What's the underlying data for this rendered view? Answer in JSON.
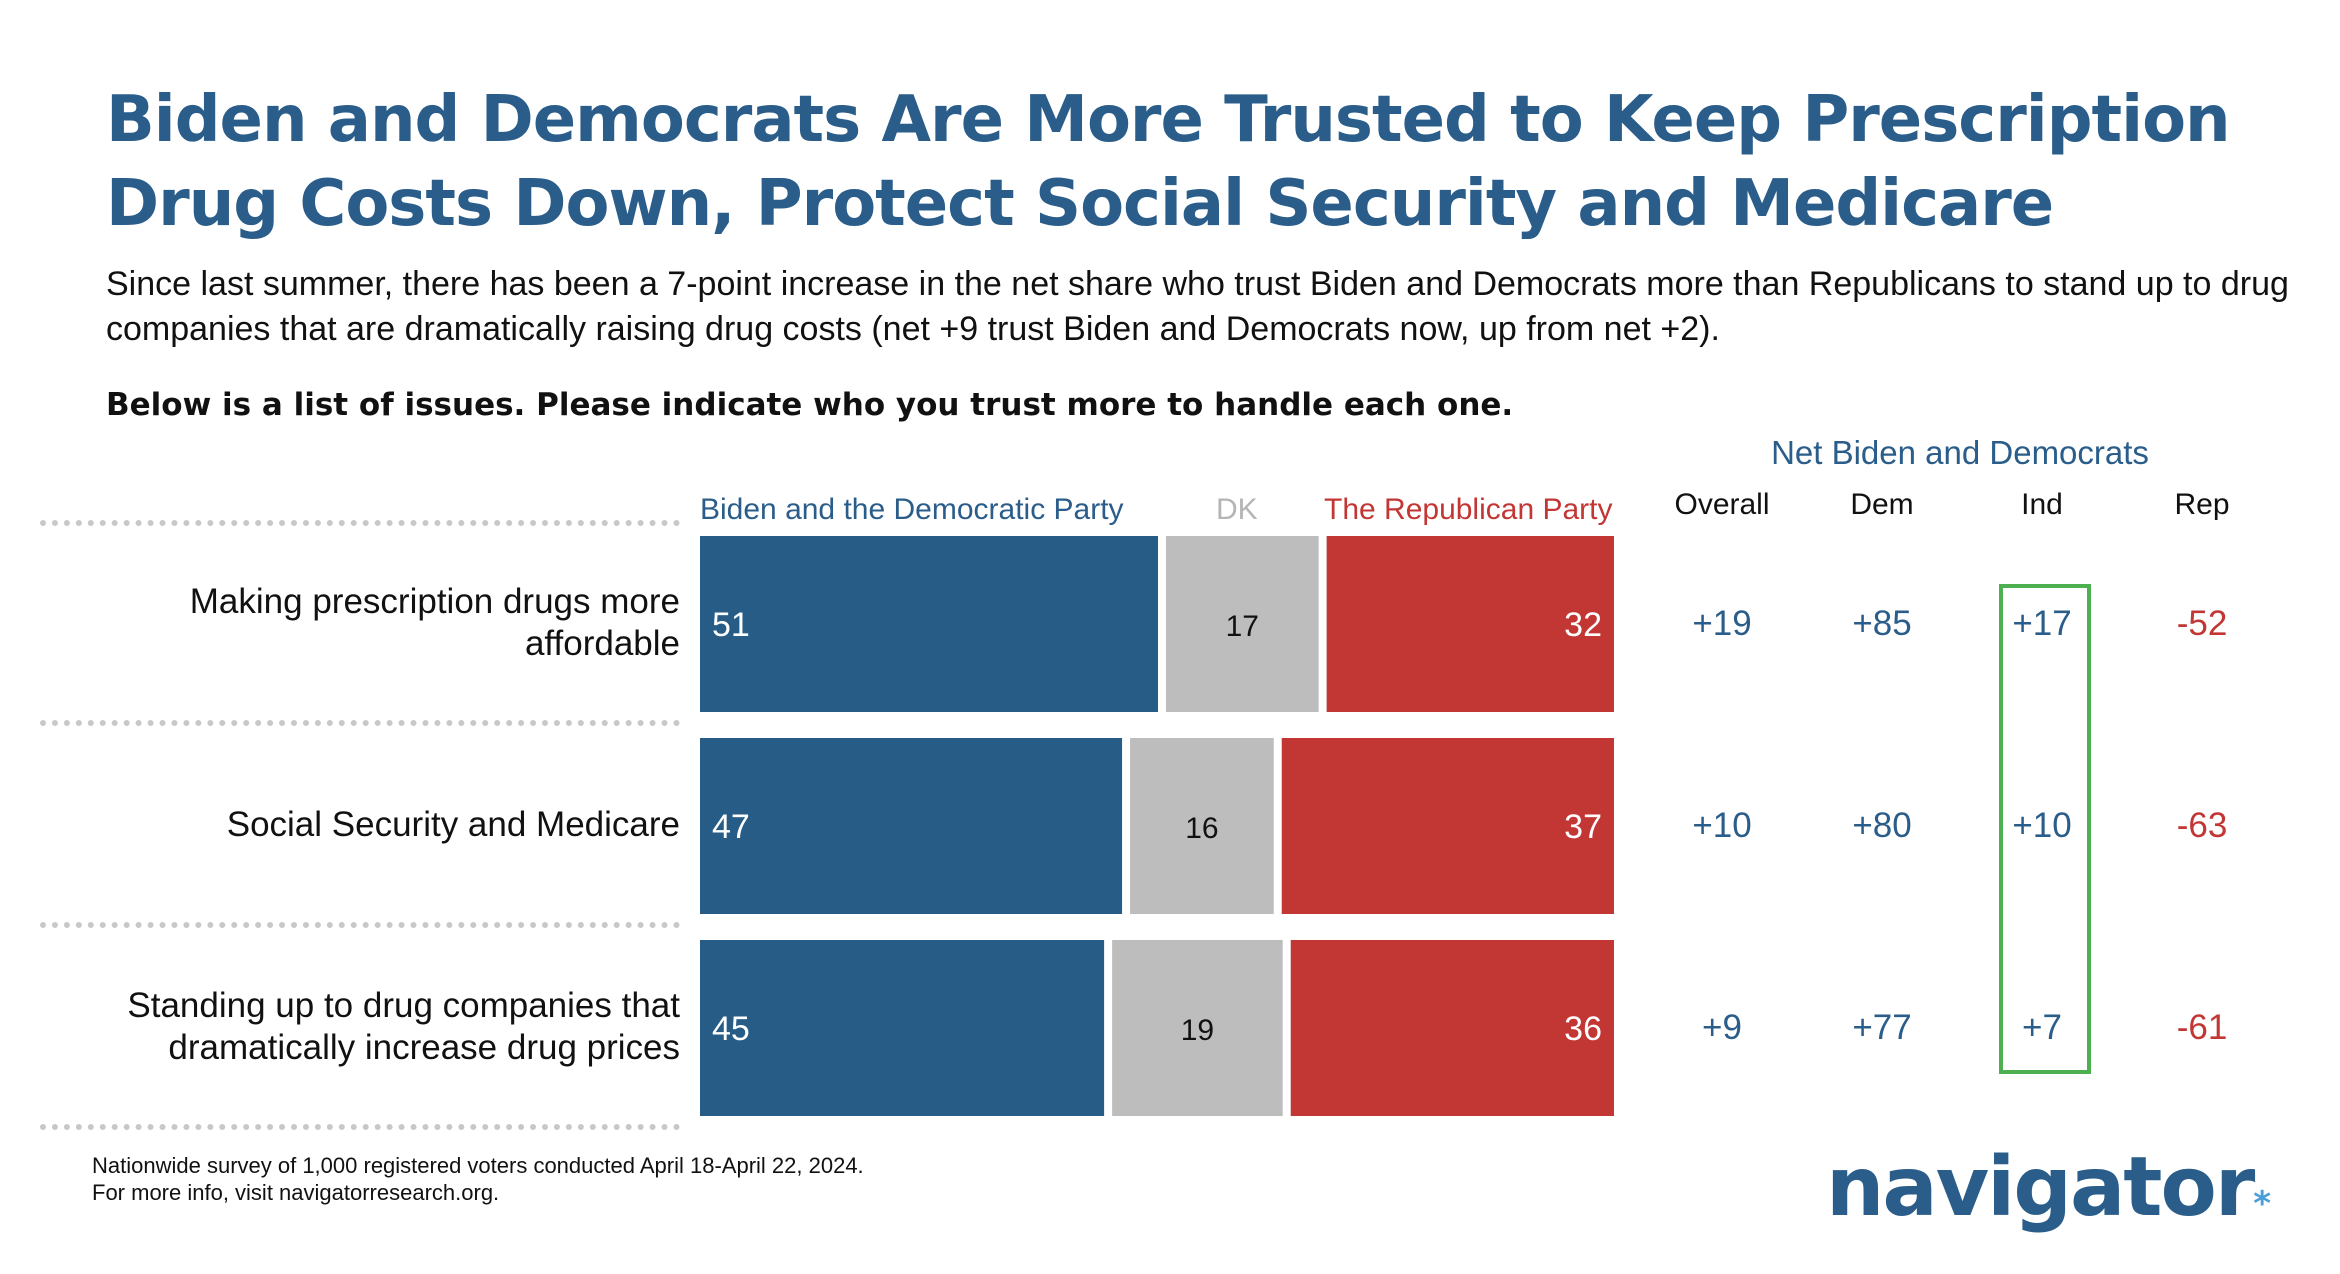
{
  "title": "Biden and Democrats Are More Trusted to Keep Prescription Drug Costs Down, Protect Social Security and Medicare",
  "subtitle": "Since last summer, there has been a 7-point increase in the net share who trust Biden and Democrats more than Republicans to stand up to drug companies that are dramatically raising drug costs (net +9 trust Biden and Democrats now, up from net +2).",
  "question": "Below is a list of issues. Please indicate who you trust more to handle each one.",
  "colors": {
    "dem": "#275c87",
    "dk": "#bdbdbd",
    "rep": "#c23634",
    "title": "#2a5d8a",
    "highlight": "#4caf50"
  },
  "net": {
    "header": "Net Biden and Democrats",
    "columns": [
      "Overall",
      "Dem",
      "Ind",
      "Rep"
    ],
    "rows": [
      [
        "+19",
        "+85",
        "+17",
        "-52"
      ],
      [
        "+10",
        "+80",
        "+10",
        "-63"
      ],
      [
        "+9",
        "+77",
        "+7",
        "-61"
      ]
    ]
  },
  "chart_data": {
    "type": "bar",
    "orientation": "horizontal",
    "stacked": true,
    "categories": [
      "Making prescription drugs more affordable",
      "Social Security and Medicare",
      "Standing up to drug companies that dramatically increase drug prices"
    ],
    "series": [
      {
        "name": "Biden and the Democratic Party",
        "values": [
          51,
          47,
          45
        ]
      },
      {
        "name": "DK",
        "values": [
          17,
          16,
          19
        ]
      },
      {
        "name": "The Republican Party",
        "values": [
          32,
          37,
          36
        ]
      }
    ],
    "legend": "top",
    "grid": false
  },
  "footnote": "Nationwide survey of 1,000 registered voters conducted April 18-April 22, 2024.\nFor more info, visit navigatorresearch.org.",
  "logo": {
    "text": "navigator",
    "mark": "*"
  }
}
